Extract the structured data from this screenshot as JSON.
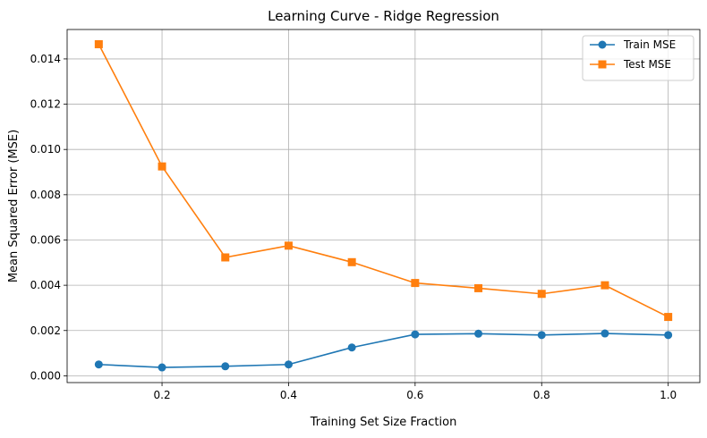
{
  "chart_data": {
    "type": "line",
    "title": "Learning Curve - Ridge Regression",
    "xlabel": "Training Set Size Fraction",
    "ylabel": "Mean Squared Error (MSE)",
    "xlim": [
      0.05,
      1.05
    ],
    "ylim": [
      -0.0003,
      0.0153
    ],
    "grid": true,
    "legend_position": "top-right",
    "x": [
      0.1,
      0.2,
      0.3,
      0.4,
      0.5,
      0.6,
      0.7,
      0.8,
      0.9,
      1.0
    ],
    "xticks": [
      "0.2",
      "0.4",
      "0.6",
      "0.8",
      "1.0"
    ],
    "yticks": [
      "0.000",
      "0.002",
      "0.004",
      "0.006",
      "0.008",
      "0.010",
      "0.012",
      "0.014"
    ],
    "series": [
      {
        "name": "Train MSE",
        "color": "#1f77b4",
        "marker": "circle",
        "values": [
          0.0005,
          0.00037,
          0.00042,
          0.0005,
          0.00125,
          0.00183,
          0.00186,
          0.0018,
          0.00187,
          0.0018
        ]
      },
      {
        "name": "Test MSE",
        "color": "#ff7f0e",
        "marker": "square",
        "values": [
          0.01465,
          0.00925,
          0.00523,
          0.00575,
          0.00502,
          0.0041,
          0.00387,
          0.00362,
          0.004,
          0.0026
        ]
      }
    ]
  }
}
